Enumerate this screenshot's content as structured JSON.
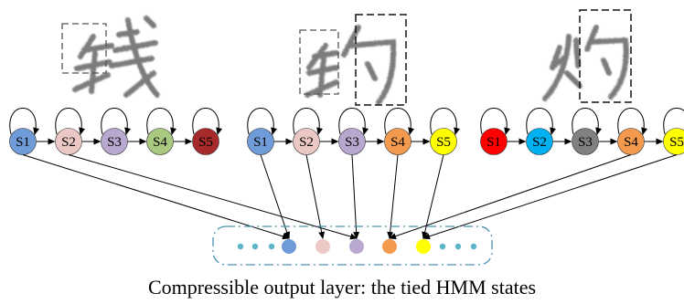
{
  "caption": "Compressible output layer: the tied HMM states",
  "models": [
    {
      "states": [
        {
          "label": "S1",
          "color": "#6f9bd8"
        },
        {
          "label": "S2",
          "color": "#ecc8c4"
        },
        {
          "label": "S3",
          "color": "#b8a8d0"
        },
        {
          "label": "S4",
          "color": "#a9c880"
        },
        {
          "label": "S5",
          "color": "#a62a2a"
        }
      ]
    },
    {
      "states": [
        {
          "label": "S1",
          "color": "#6f9bd8"
        },
        {
          "label": "S2",
          "color": "#ecc8c4"
        },
        {
          "label": "S3",
          "color": "#b8a8d0"
        },
        {
          "label": "S4",
          "color": "#f39a4e"
        },
        {
          "label": "S5",
          "color": "#ffff00"
        }
      ]
    },
    {
      "states": [
        {
          "label": "S1",
          "color": "#ff0000"
        },
        {
          "label": "S2",
          "color": "#00b0f0"
        },
        {
          "label": "S3",
          "color": "#808080"
        },
        {
          "label": "S4",
          "color": "#f39a4e"
        },
        {
          "label": "S5",
          "color": "#ffff00"
        }
      ]
    }
  ],
  "tied_states": [
    {
      "color": "#6f9bd8"
    },
    {
      "color": "#ecc8c4"
    },
    {
      "color": "#b8a8d0"
    },
    {
      "color": "#f39a4e"
    },
    {
      "color": "#ffff00"
    }
  ],
  "dot_color": "#5bb5c8",
  "container_color": "#4a90b0"
}
